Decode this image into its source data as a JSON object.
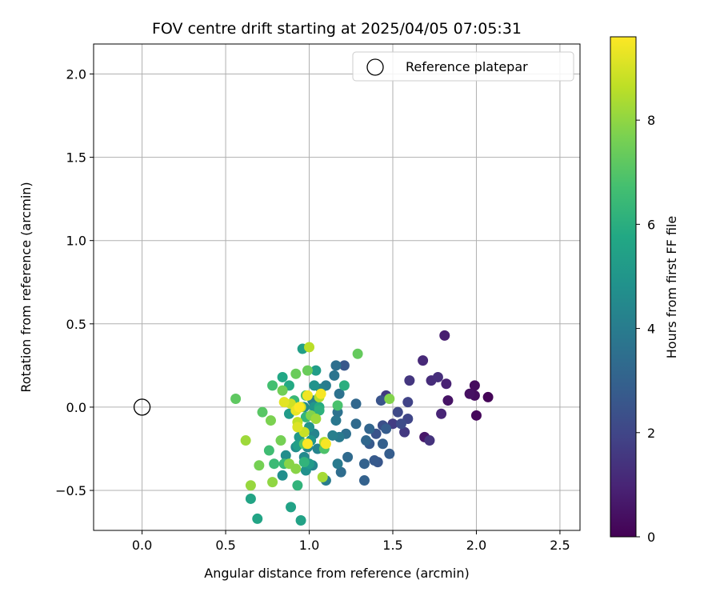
{
  "chart_data": {
    "type": "scatter",
    "title": "FOV centre drift starting at 2025/04/05 07:05:31",
    "xlabel": "Angular distance from reference (arcmin)",
    "ylabel": "Rotation from reference (arcmin)",
    "xlim": [
      -0.29,
      2.62
    ],
    "ylim": [
      -0.74,
      2.18
    ],
    "xticks": [
      0.0,
      0.5,
      1.0,
      1.5,
      2.0,
      2.5
    ],
    "xtick_labels": [
      "0.0",
      "0.5",
      "1.0",
      "1.5",
      "2.0",
      "2.5"
    ],
    "yticks": [
      -0.5,
      0.0,
      0.5,
      1.0,
      1.5,
      2.0
    ],
    "ytick_labels": [
      "−0.5",
      "0.0",
      "0.5",
      "1.0",
      "1.5",
      "2.0"
    ],
    "grid": true,
    "legend": {
      "entries": [
        "Reference platepar"
      ],
      "placement": "upper right"
    },
    "colorbar": {
      "label": "Hours from first FF file",
      "range": [
        0,
        9.6
      ],
      "ticks": [
        0,
        2,
        4,
        6,
        8
      ],
      "tick_labels": [
        "0",
        "2",
        "4",
        "6",
        "8"
      ],
      "colormap": "viridis"
    },
    "reference_point": {
      "name": "Reference platepar",
      "x": 0.0,
      "y": 0.0
    },
    "points": [
      {
        "x": 2.07,
        "y": 0.06,
        "c": 0.1
      },
      {
        "x": 2.0,
        "y": -0.05,
        "c": 0.2
      },
      {
        "x": 1.99,
        "y": 0.13,
        "c": 0.3
      },
      {
        "x": 1.99,
        "y": 0.07,
        "c": 0.3
      },
      {
        "x": 1.96,
        "y": 0.08,
        "c": 0.4
      },
      {
        "x": 1.83,
        "y": 0.04,
        "c": 0.5
      },
      {
        "x": 1.81,
        "y": 0.43,
        "c": 0.8
      },
      {
        "x": 1.82,
        "y": 0.14,
        "c": 0.9
      },
      {
        "x": 1.79,
        "y": -0.04,
        "c": 1.0
      },
      {
        "x": 1.69,
        "y": -0.18,
        "c": 0.6
      },
      {
        "x": 1.68,
        "y": 0.28,
        "c": 1.1
      },
      {
        "x": 1.73,
        "y": 0.16,
        "c": 1.2
      },
      {
        "x": 1.77,
        "y": 0.18,
        "c": 1.3
      },
      {
        "x": 1.72,
        "y": -0.2,
        "c": 1.4
      },
      {
        "x": 1.6,
        "y": 0.16,
        "c": 1.5
      },
      {
        "x": 1.57,
        "y": -0.15,
        "c": 1.6
      },
      {
        "x": 1.46,
        "y": 0.07,
        "c": 1.6
      },
      {
        "x": 1.5,
        "y": -0.1,
        "c": 1.7
      },
      {
        "x": 1.59,
        "y": 0.03,
        "c": 1.9
      },
      {
        "x": 1.59,
        "y": -0.07,
        "c": 2.0
      },
      {
        "x": 1.53,
        "y": -0.03,
        "c": 2.1
      },
      {
        "x": 1.55,
        "y": -0.1,
        "c": 2.2
      },
      {
        "x": 1.44,
        "y": -0.11,
        "c": 2.3
      },
      {
        "x": 1.4,
        "y": -0.16,
        "c": 2.4
      },
      {
        "x": 1.43,
        "y": 0.04,
        "c": 2.5
      },
      {
        "x": 1.41,
        "y": -0.33,
        "c": 2.6
      },
      {
        "x": 1.39,
        "y": -0.32,
        "c": 2.7
      },
      {
        "x": 1.36,
        "y": -0.22,
        "c": 2.7
      },
      {
        "x": 1.21,
        "y": 0.25,
        "c": 2.6
      },
      {
        "x": 1.48,
        "y": -0.28,
        "c": 2.8
      },
      {
        "x": 1.46,
        "y": -0.13,
        "c": 2.8
      },
      {
        "x": 1.44,
        "y": -0.22,
        "c": 2.9
      },
      {
        "x": 1.33,
        "y": -0.44,
        "c": 3.0
      },
      {
        "x": 1.33,
        "y": -0.34,
        "c": 3.0
      },
      {
        "x": 1.36,
        "y": -0.13,
        "c": 3.1
      },
      {
        "x": 1.34,
        "y": -0.2,
        "c": 3.2
      },
      {
        "x": 1.28,
        "y": 0.02,
        "c": 3.2
      },
      {
        "x": 1.28,
        "y": -0.1,
        "c": 3.3
      },
      {
        "x": 1.23,
        "y": -0.3,
        "c": 3.3
      },
      {
        "x": 1.19,
        "y": -0.39,
        "c": 3.4
      },
      {
        "x": 1.22,
        "y": -0.16,
        "c": 3.5
      },
      {
        "x": 1.16,
        "y": 0.25,
        "c": 3.5
      },
      {
        "x": 1.18,
        "y": 0.08,
        "c": 3.6
      },
      {
        "x": 1.17,
        "y": -0.03,
        "c": 3.6
      },
      {
        "x": 1.15,
        "y": 0.19,
        "c": 3.7
      },
      {
        "x": 1.16,
        "y": -0.08,
        "c": 3.8
      },
      {
        "x": 1.18,
        "y": -0.18,
        "c": 3.9
      },
      {
        "x": 1.17,
        "y": -0.34,
        "c": 3.9
      },
      {
        "x": 1.1,
        "y": 0.13,
        "c": 4.0
      },
      {
        "x": 1.1,
        "y": -0.44,
        "c": 4.0
      },
      {
        "x": 1.14,
        "y": -0.17,
        "c": 4.1
      },
      {
        "x": 1.07,
        "y": 0.11,
        "c": 4.2
      },
      {
        "x": 1.02,
        "y": 0.04,
        "c": 4.2
      },
      {
        "x": 1.03,
        "y": -0.16,
        "c": 4.3
      },
      {
        "x": 1.05,
        "y": -0.25,
        "c": 4.3
      },
      {
        "x": 1.02,
        "y": -0.35,
        "c": 4.4
      },
      {
        "x": 0.99,
        "y": -0.24,
        "c": 4.4
      },
      {
        "x": 0.97,
        "y": -0.3,
        "c": 4.5
      },
      {
        "x": 0.97,
        "y": 0.0,
        "c": 4.6
      },
      {
        "x": 0.92,
        "y": -0.24,
        "c": 4.6
      },
      {
        "x": 0.86,
        "y": -0.29,
        "c": 4.7
      },
      {
        "x": 0.84,
        "y": -0.41,
        "c": 4.7
      },
      {
        "x": 0.98,
        "y": -0.38,
        "c": 4.8
      },
      {
        "x": 1.03,
        "y": 0.13,
        "c": 4.9
      },
      {
        "x": 1.0,
        "y": -0.12,
        "c": 4.9
      },
      {
        "x": 1.01,
        "y": -0.2,
        "c": 5.0
      },
      {
        "x": 1.03,
        "y": 0.0,
        "c": 5.0
      },
      {
        "x": 0.94,
        "y": -0.18,
        "c": 5.1
      },
      {
        "x": 0.88,
        "y": -0.04,
        "c": 5.2
      },
      {
        "x": 1.0,
        "y": -0.34,
        "c": 5.2
      },
      {
        "x": 1.04,
        "y": 0.22,
        "c": 5.3
      },
      {
        "x": 0.96,
        "y": 0.35,
        "c": 5.4
      },
      {
        "x": 0.93,
        "y": -0.23,
        "c": 5.4
      },
      {
        "x": 0.95,
        "y": -0.68,
        "c": 5.5
      },
      {
        "x": 0.89,
        "y": -0.6,
        "c": 5.5
      },
      {
        "x": 0.69,
        "y": -0.67,
        "c": 5.6
      },
      {
        "x": 0.65,
        "y": -0.55,
        "c": 5.6
      },
      {
        "x": 0.84,
        "y": 0.18,
        "c": 5.7
      },
      {
        "x": 0.88,
        "y": 0.13,
        "c": 5.8
      },
      {
        "x": 1.06,
        "y": 0.0,
        "c": 5.9
      },
      {
        "x": 1.21,
        "y": 0.13,
        "c": 6.0
      },
      {
        "x": 1.06,
        "y": -0.02,
        "c": 6.1
      },
      {
        "x": 0.93,
        "y": -0.47,
        "c": 6.2
      },
      {
        "x": 0.97,
        "y": -0.33,
        "c": 6.2
      },
      {
        "x": 0.98,
        "y": -0.06,
        "c": 6.3
      },
      {
        "x": 0.91,
        "y": 0.04,
        "c": 6.4
      },
      {
        "x": 0.85,
        "y": -0.34,
        "c": 6.4
      },
      {
        "x": 0.79,
        "y": -0.34,
        "c": 6.5
      },
      {
        "x": 0.76,
        "y": -0.26,
        "c": 6.6
      },
      {
        "x": 0.78,
        "y": 0.13,
        "c": 6.7
      },
      {
        "x": 1.17,
        "y": 0.01,
        "c": 6.8
      },
      {
        "x": 1.09,
        "y": -0.25,
        "c": 6.9
      },
      {
        "x": 0.98,
        "y": 0.07,
        "c": 7.0
      },
      {
        "x": 0.97,
        "y": -0.22,
        "c": 7.1
      },
      {
        "x": 0.72,
        "y": -0.03,
        "c": 7.1
      },
      {
        "x": 0.56,
        "y": 0.05,
        "c": 7.2
      },
      {
        "x": 1.29,
        "y": 0.32,
        "c": 7.3
      },
      {
        "x": 0.99,
        "y": 0.22,
        "c": 7.4
      },
      {
        "x": 0.92,
        "y": 0.2,
        "c": 7.4
      },
      {
        "x": 0.84,
        "y": 0.1,
        "c": 7.5
      },
      {
        "x": 0.83,
        "y": -0.2,
        "c": 7.6
      },
      {
        "x": 0.7,
        "y": -0.35,
        "c": 7.6
      },
      {
        "x": 0.77,
        "y": -0.08,
        "c": 7.7
      },
      {
        "x": 1.48,
        "y": 0.05,
        "c": 7.8
      },
      {
        "x": 1.01,
        "y": -0.05,
        "c": 7.8
      },
      {
        "x": 0.92,
        "y": -0.37,
        "c": 7.9
      },
      {
        "x": 0.88,
        "y": -0.34,
        "c": 7.9
      },
      {
        "x": 0.78,
        "y": -0.45,
        "c": 8.0
      },
      {
        "x": 0.65,
        "y": -0.47,
        "c": 8.1
      },
      {
        "x": 0.62,
        "y": -0.2,
        "c": 8.2
      },
      {
        "x": 1.04,
        "y": -0.07,
        "c": 8.2
      },
      {
        "x": 1.08,
        "y": -0.42,
        "c": 8.3
      },
      {
        "x": 1.09,
        "y": -0.21,
        "c": 8.4
      },
      {
        "x": 1.06,
        "y": 0.06,
        "c": 8.5
      },
      {
        "x": 1.0,
        "y": 0.36,
        "c": 8.6
      },
      {
        "x": 0.93,
        "y": -0.09,
        "c": 8.7
      },
      {
        "x": 0.97,
        "y": -0.15,
        "c": 8.8
      },
      {
        "x": 0.89,
        "y": 0.02,
        "c": 8.9
      },
      {
        "x": 0.95,
        "y": 0.0,
        "c": 9.0
      },
      {
        "x": 0.93,
        "y": -0.12,
        "c": 9.1
      },
      {
        "x": 0.85,
        "y": 0.03,
        "c": 9.2
      },
      {
        "x": 0.92,
        "y": -0.02,
        "c": 9.3
      },
      {
        "x": 0.99,
        "y": 0.07,
        "c": 9.4
      },
      {
        "x": 1.07,
        "y": 0.08,
        "c": 9.5
      },
      {
        "x": 1.1,
        "y": -0.22,
        "c": 9.5
      },
      {
        "x": 0.99,
        "y": -0.22,
        "c": 9.6
      },
      {
        "x": 0.94,
        "y": 0.0,
        "c": 9.6
      }
    ]
  }
}
